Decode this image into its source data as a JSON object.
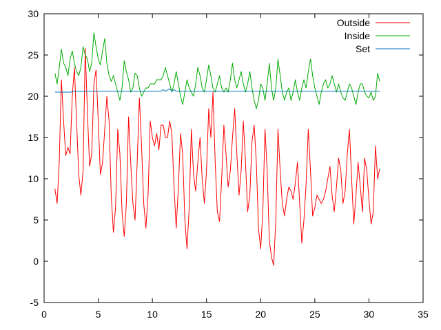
{
  "chart_data": {
    "type": "line",
    "title": "",
    "xlabel": "",
    "ylabel": "",
    "xlim": [
      0,
      35
    ],
    "ylim": [
      -5,
      30
    ],
    "xticks": [
      0,
      5,
      10,
      15,
      20,
      25,
      30,
      35
    ],
    "yticks": [
      -5,
      0,
      5,
      10,
      15,
      20,
      25,
      30
    ],
    "grid": false,
    "legend_position": "top-right",
    "series": [
      {
        "name": "Outside",
        "color": "#ff0000",
        "points": [
          [
            1.0,
            8.8
          ],
          [
            1.2,
            7.0
          ],
          [
            1.4,
            12.0
          ],
          [
            1.6,
            22.0
          ],
          [
            1.8,
            17.0
          ],
          [
            2.0,
            12.8
          ],
          [
            2.2,
            13.8
          ],
          [
            2.4,
            13.0
          ],
          [
            2.6,
            20.0
          ],
          [
            2.8,
            23.5
          ],
          [
            3.0,
            17.0
          ],
          [
            3.2,
            10.5
          ],
          [
            3.4,
            8.0
          ],
          [
            3.6,
            11.0
          ],
          [
            3.8,
            25.8
          ],
          [
            4.0,
            18.0
          ],
          [
            4.2,
            11.5
          ],
          [
            4.4,
            13.0
          ],
          [
            4.6,
            21.5
          ],
          [
            4.8,
            23.2
          ],
          [
            5.0,
            17.0
          ],
          [
            5.2,
            10.5
          ],
          [
            5.4,
            12.0
          ],
          [
            5.6,
            16.0
          ],
          [
            5.8,
            20.0
          ],
          [
            6.0,
            17.0
          ],
          [
            6.2,
            8.0
          ],
          [
            6.4,
            3.5
          ],
          [
            6.6,
            6.5
          ],
          [
            6.8,
            16.0
          ],
          [
            7.0,
            13.0
          ],
          [
            7.2,
            6.0
          ],
          [
            7.4,
            3.0
          ],
          [
            7.6,
            7.0
          ],
          [
            7.8,
            17.5
          ],
          [
            8.0,
            12.0
          ],
          [
            8.2,
            7.0
          ],
          [
            8.4,
            5.0
          ],
          [
            8.6,
            12.0
          ],
          [
            8.8,
            19.8
          ],
          [
            9.0,
            14.0
          ],
          [
            9.2,
            7.0
          ],
          [
            9.4,
            4.0
          ],
          [
            9.6,
            8.0
          ],
          [
            9.8,
            17.0
          ],
          [
            10.0,
            15.0
          ],
          [
            10.2,
            14.0
          ],
          [
            10.4,
            15.5
          ],
          [
            10.6,
            13.5
          ],
          [
            10.8,
            16.5
          ],
          [
            11.0,
            16.5
          ],
          [
            11.2,
            15.0
          ],
          [
            11.4,
            15.0
          ],
          [
            11.6,
            17.0
          ],
          [
            11.8,
            15.5
          ],
          [
            12.0,
            9.0
          ],
          [
            12.2,
            4.0
          ],
          [
            12.4,
            9.0
          ],
          [
            12.6,
            15.5
          ],
          [
            12.8,
            13.0
          ],
          [
            13.0,
            5.0
          ],
          [
            13.2,
            1.5
          ],
          [
            13.4,
            6.5
          ],
          [
            13.6,
            16.0
          ],
          [
            13.8,
            10.5
          ],
          [
            14.0,
            8.5
          ],
          [
            14.2,
            12.0
          ],
          [
            14.4,
            15.0
          ],
          [
            14.6,
            10.0
          ],
          [
            14.8,
            7.0
          ],
          [
            15.0,
            11.0
          ],
          [
            15.2,
            18.5
          ],
          [
            15.4,
            15.0
          ],
          [
            15.6,
            20.5
          ],
          [
            15.8,
            12.0
          ],
          [
            16.0,
            6.0
          ],
          [
            16.2,
            4.8
          ],
          [
            16.4,
            10.0
          ],
          [
            16.6,
            16.5
          ],
          [
            16.8,
            13.0
          ],
          [
            17.0,
            9.0
          ],
          [
            17.2,
            11.0
          ],
          [
            17.4,
            15.0
          ],
          [
            17.6,
            18.5
          ],
          [
            17.8,
            13.0
          ],
          [
            18.0,
            8.0
          ],
          [
            18.2,
            11.0
          ],
          [
            18.4,
            17.0
          ],
          [
            18.6,
            12.0
          ],
          [
            18.8,
            6.0
          ],
          [
            19.0,
            8.0
          ],
          [
            19.2,
            14.5
          ],
          [
            19.4,
            16.5
          ],
          [
            19.6,
            12.0
          ],
          [
            19.8,
            4.0
          ],
          [
            20.0,
            1.5
          ],
          [
            20.2,
            6.0
          ],
          [
            20.4,
            16.0
          ],
          [
            20.6,
            11.0
          ],
          [
            20.8,
            2.5
          ],
          [
            21.0,
            0.5
          ],
          [
            21.2,
            -0.5
          ],
          [
            21.4,
            5.0
          ],
          [
            21.6,
            16.0
          ],
          [
            21.8,
            11.0
          ],
          [
            22.0,
            7.0
          ],
          [
            22.2,
            5.5
          ],
          [
            22.4,
            7.5
          ],
          [
            22.6,
            9.0
          ],
          [
            22.8,
            8.5
          ],
          [
            23.0,
            7.5
          ],
          [
            23.2,
            9.5
          ],
          [
            23.4,
            12.0
          ],
          [
            23.6,
            7.0
          ],
          [
            23.8,
            2.2
          ],
          [
            24.0,
            5.0
          ],
          [
            24.2,
            9.5
          ],
          [
            24.4,
            16.0
          ],
          [
            24.6,
            11.0
          ],
          [
            24.8,
            5.5
          ],
          [
            25.0,
            6.5
          ],
          [
            25.2,
            8.0
          ],
          [
            25.4,
            7.5
          ],
          [
            25.6,
            7.0
          ],
          [
            25.8,
            7.5
          ],
          [
            26.0,
            8.5
          ],
          [
            26.2,
            10.0
          ],
          [
            26.4,
            11.5
          ],
          [
            26.6,
            8.0
          ],
          [
            26.8,
            6.0
          ],
          [
            27.0,
            9.0
          ],
          [
            27.2,
            12.5
          ],
          [
            27.4,
            11.0
          ],
          [
            27.6,
            7.0
          ],
          [
            27.8,
            8.5
          ],
          [
            28.0,
            13.0
          ],
          [
            28.2,
            16.0
          ],
          [
            28.4,
            10.0
          ],
          [
            28.6,
            4.5
          ],
          [
            28.8,
            8.0
          ],
          [
            29.0,
            12.0
          ],
          [
            29.2,
            9.0
          ],
          [
            29.4,
            6.0
          ],
          [
            29.6,
            12.5
          ],
          [
            29.8,
            11.0
          ],
          [
            30.0,
            7.5
          ],
          [
            30.2,
            4.5
          ],
          [
            30.4,
            6.0
          ],
          [
            30.6,
            14.0
          ],
          [
            30.8,
            10.0
          ],
          [
            31.0,
            11.2
          ]
        ]
      },
      {
        "name": "Inside",
        "color": "#00aa00",
        "points": [
          [
            1.0,
            22.8
          ],
          [
            1.2,
            21.5
          ],
          [
            1.4,
            23.5
          ],
          [
            1.6,
            25.7
          ],
          [
            1.8,
            24.0
          ],
          [
            2.0,
            23.5
          ],
          [
            2.2,
            22.5
          ],
          [
            2.4,
            24.5
          ],
          [
            2.6,
            25.5
          ],
          [
            2.8,
            24.0
          ],
          [
            3.0,
            23.0
          ],
          [
            3.2,
            22.5
          ],
          [
            3.4,
            23.5
          ],
          [
            3.6,
            26.0
          ],
          [
            3.8,
            25.0
          ],
          [
            4.0,
            24.5
          ],
          [
            4.2,
            23.0
          ],
          [
            4.4,
            24.0
          ],
          [
            4.6,
            27.7
          ],
          [
            4.8,
            26.0
          ],
          [
            5.0,
            24.5
          ],
          [
            5.2,
            23.8
          ],
          [
            5.4,
            25.5
          ],
          [
            5.6,
            27.0
          ],
          [
            5.8,
            24.0
          ],
          [
            6.0,
            22.5
          ],
          [
            6.2,
            21.8
          ],
          [
            6.4,
            22.5
          ],
          [
            6.6,
            21.5
          ],
          [
            6.8,
            20.5
          ],
          [
            7.0,
            19.5
          ],
          [
            7.2,
            21.0
          ],
          [
            7.4,
            24.3
          ],
          [
            7.6,
            23.0
          ],
          [
            7.8,
            22.0
          ],
          [
            8.0,
            20.5
          ],
          [
            8.2,
            21.0
          ],
          [
            8.4,
            22.8
          ],
          [
            8.6,
            22.5
          ],
          [
            8.8,
            21.0
          ],
          [
            9.0,
            20.0
          ],
          [
            9.2,
            20.5
          ],
          [
            9.4,
            21.0
          ],
          [
            9.6,
            21.0
          ],
          [
            9.8,
            21.5
          ],
          [
            10.0,
            21.5
          ],
          [
            10.2,
            21.5
          ],
          [
            10.4,
            22.0
          ],
          [
            10.6,
            22.0
          ],
          [
            10.8,
            22.0
          ],
          [
            11.0,
            22.5
          ],
          [
            11.2,
            23.5
          ],
          [
            11.4,
            22.5
          ],
          [
            11.6,
            21.5
          ],
          [
            11.8,
            20.5
          ],
          [
            12.0,
            21.5
          ],
          [
            12.2,
            23.0
          ],
          [
            12.4,
            21.5
          ],
          [
            12.6,
            20.0
          ],
          [
            12.8,
            19.0
          ],
          [
            13.0,
            20.5
          ],
          [
            13.2,
            22.0
          ],
          [
            13.4,
            21.0
          ],
          [
            13.6,
            20.5
          ],
          [
            13.8,
            20.0
          ],
          [
            14.0,
            21.5
          ],
          [
            14.2,
            23.5
          ],
          [
            14.4,
            22.5
          ],
          [
            14.6,
            21.0
          ],
          [
            14.8,
            20.5
          ],
          [
            15.0,
            22.0
          ],
          [
            15.2,
            23.8
          ],
          [
            15.4,
            22.5
          ],
          [
            15.6,
            21.0
          ],
          [
            15.8,
            20.5
          ],
          [
            16.0,
            21.5
          ],
          [
            16.2,
            22.5
          ],
          [
            16.4,
            21.0
          ],
          [
            16.6,
            20.5
          ],
          [
            16.8,
            21.0
          ],
          [
            17.0,
            20.5
          ],
          [
            17.2,
            22.0
          ],
          [
            17.4,
            24.0
          ],
          [
            17.6,
            22.0
          ],
          [
            17.8,
            21.0
          ],
          [
            18.0,
            22.0
          ],
          [
            18.2,
            23.0
          ],
          [
            18.4,
            21.5
          ],
          [
            18.6,
            20.5
          ],
          [
            18.8,
            21.5
          ],
          [
            19.0,
            23.0
          ],
          [
            19.2,
            21.0
          ],
          [
            19.4,
            19.5
          ],
          [
            19.6,
            18.5
          ],
          [
            19.8,
            19.5
          ],
          [
            20.0,
            21.5
          ],
          [
            20.2,
            21.0
          ],
          [
            20.4,
            19.5
          ],
          [
            20.6,
            21.5
          ],
          [
            20.8,
            24.0
          ],
          [
            21.0,
            21.0
          ],
          [
            21.2,
            19.5
          ],
          [
            21.4,
            21.0
          ],
          [
            21.6,
            24.5
          ],
          [
            21.8,
            22.5
          ],
          [
            22.0,
            20.5
          ],
          [
            22.2,
            19.5
          ],
          [
            22.4,
            20.5
          ],
          [
            22.6,
            21.0
          ],
          [
            22.8,
            19.5
          ],
          [
            23.0,
            20.5
          ],
          [
            23.2,
            22.0
          ],
          [
            23.4,
            20.5
          ],
          [
            23.6,
            19.5
          ],
          [
            23.8,
            21.0
          ],
          [
            24.0,
            22.0
          ],
          [
            24.2,
            21.0
          ],
          [
            24.4,
            23.0
          ],
          [
            24.6,
            24.5
          ],
          [
            24.8,
            22.5
          ],
          [
            25.0,
            21.0
          ],
          [
            25.2,
            20.0
          ],
          [
            25.4,
            19.0
          ],
          [
            25.6,
            20.5
          ],
          [
            25.8,
            21.5
          ],
          [
            26.0,
            22.0
          ],
          [
            26.2,
            21.0
          ],
          [
            26.4,
            21.5
          ],
          [
            26.6,
            22.5
          ],
          [
            26.8,
            21.5
          ],
          [
            27.0,
            20.5
          ],
          [
            27.2,
            21.5
          ],
          [
            27.4,
            20.5
          ],
          [
            27.6,
            19.8
          ],
          [
            27.8,
            19.5
          ],
          [
            28.0,
            20.5
          ],
          [
            28.2,
            21.5
          ],
          [
            28.4,
            21.0
          ],
          [
            28.6,
            20.0
          ],
          [
            28.8,
            19.0
          ],
          [
            29.0,
            20.5
          ],
          [
            29.2,
            21.5
          ],
          [
            29.4,
            21.5
          ],
          [
            29.6,
            20.5
          ],
          [
            29.8,
            20.0
          ],
          [
            30.0,
            19.8
          ],
          [
            30.2,
            20.5
          ],
          [
            30.4,
            19.5
          ],
          [
            30.6,
            20.0
          ],
          [
            30.8,
            22.8
          ],
          [
            31.0,
            21.8
          ]
        ]
      },
      {
        "name": "Set",
        "color": "#0072bd",
        "points": [
          [
            1.0,
            20.5
          ],
          [
            2.5,
            20.5
          ],
          [
            2.6,
            20.6
          ],
          [
            10.8,
            20.6
          ],
          [
            11.0,
            20.8
          ],
          [
            11.2,
            20.6
          ],
          [
            11.6,
            20.9
          ],
          [
            11.8,
            20.6
          ],
          [
            12.0,
            20.8
          ],
          [
            12.2,
            20.6
          ],
          [
            13.0,
            20.6
          ],
          [
            16.0,
            20.6
          ],
          [
            18.0,
            20.6
          ],
          [
            22.0,
            20.6
          ],
          [
            26.0,
            20.6
          ],
          [
            31.0,
            20.6
          ]
        ]
      }
    ]
  }
}
